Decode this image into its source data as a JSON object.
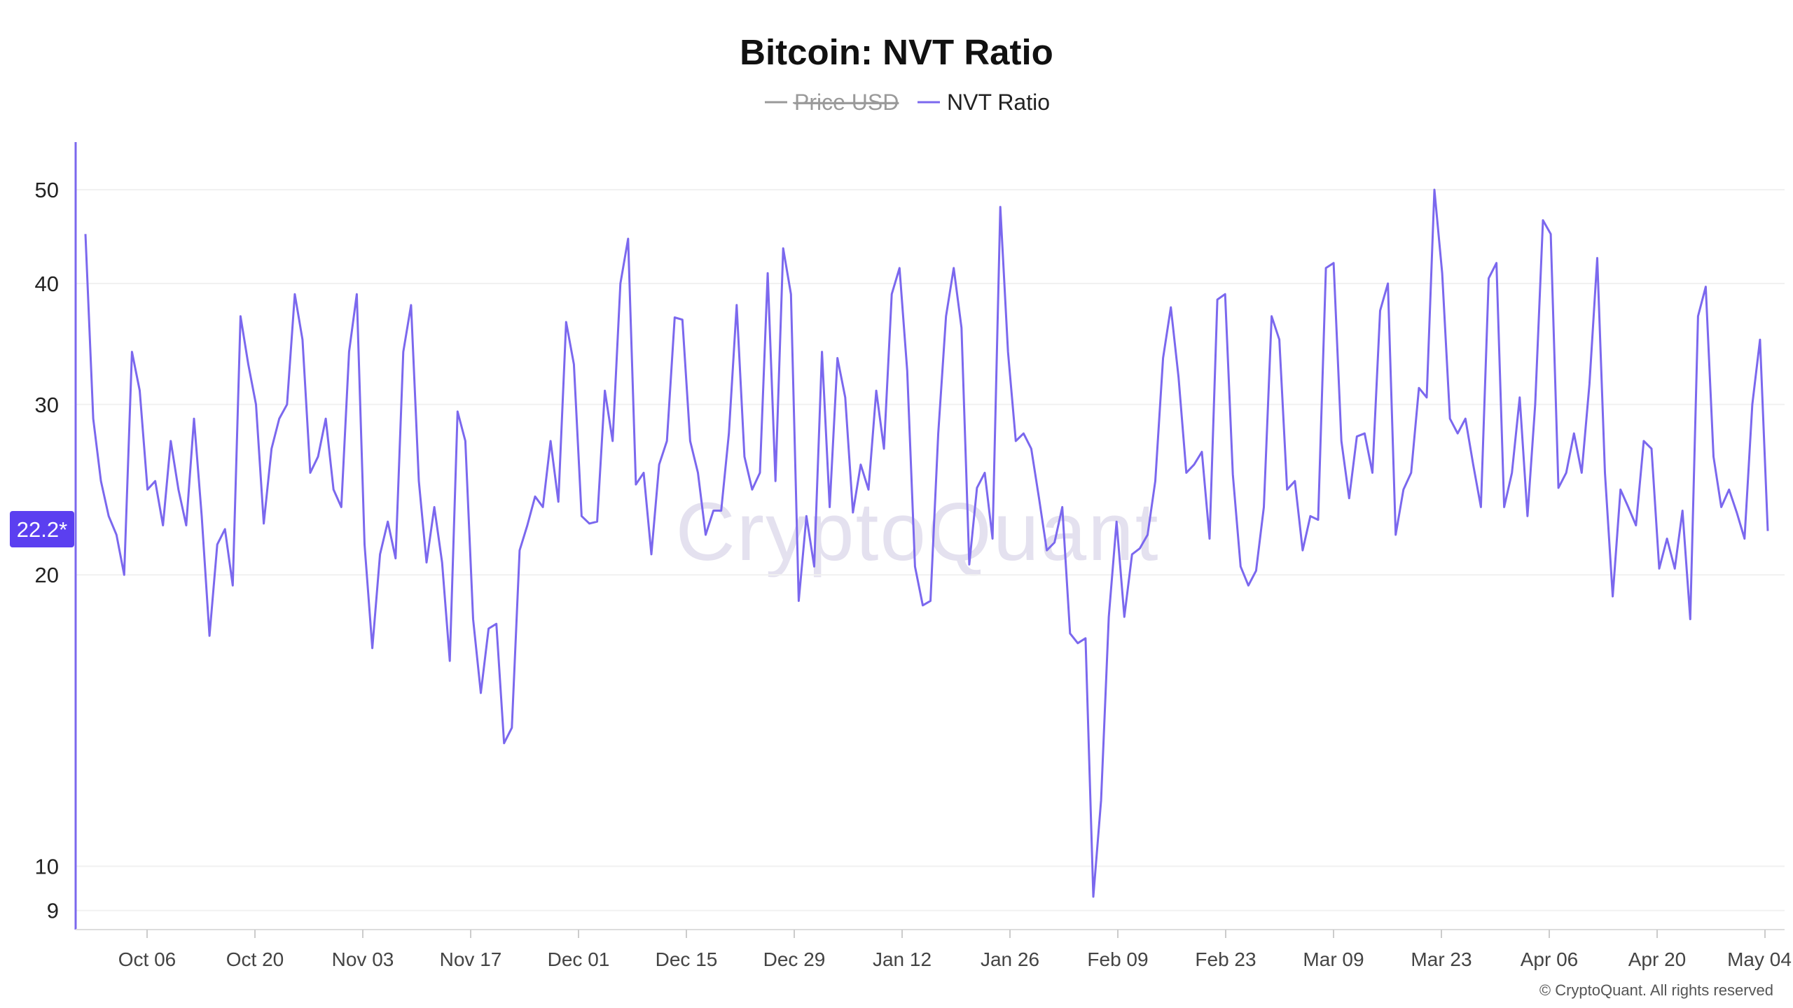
{
  "chart_data": {
    "type": "line",
    "title": "Bitcoin: NVT Ratio",
    "y_scale": "log",
    "ylim": [
      8.6,
      56
    ],
    "y_ticks": [
      "9",
      "10",
      "20",
      "30",
      "40",
      "50"
    ],
    "x_ticks": [
      "Oct 06",
      "Oct 20",
      "Nov 03",
      "Nov 17",
      "Dec 01",
      "Dec 15",
      "Dec 29",
      "Jan 12",
      "Jan 26",
      "Feb 09",
      "Feb 23",
      "Mar 09",
      "Mar 23",
      "Apr 06",
      "Apr 20",
      "May 04"
    ],
    "legend": [
      {
        "name": "Price USD",
        "color": "#888888",
        "hidden": true
      },
      {
        "name": "NVT Ratio",
        "color": "#7b68ee",
        "hidden": false
      }
    ],
    "current_value_label": "22.2*",
    "series": [
      {
        "name": "NVT Ratio",
        "color": "#7b68ee",
        "values": [
          45,
          29,
          25,
          23,
          22,
          20,
          34,
          31,
          24.5,
          25,
          22.5,
          27.5,
          24.5,
          22.5,
          29,
          23,
          17.3,
          21.5,
          22.3,
          19.5,
          37,
          33,
          30,
          22.6,
          27,
          29,
          30,
          39,
          35,
          25.5,
          26.5,
          29,
          24.5,
          23.5,
          34,
          39,
          21.5,
          16.8,
          21,
          22.7,
          20.8,
          34,
          38,
          25,
          20.6,
          23.5,
          20.6,
          16.3,
          29.5,
          27.5,
          18,
          15.1,
          17.6,
          17.8,
          13.4,
          13.9,
          21.2,
          22.5,
          24.1,
          23.5,
          27.5,
          23.8,
          36.5,
          33,
          23,
          22.6,
          22.7,
          31,
          27.5,
          40,
          44.5,
          24.8,
          25.5,
          21,
          26,
          27.5,
          36.9,
          36.7,
          27.5,
          25.5,
          22,
          23.3,
          23.3,
          28,
          38,
          26.5,
          24.5,
          25.5,
          41,
          25,
          43.5,
          39,
          18.8,
          23,
          20.4,
          34,
          23.5,
          33.5,
          30.5,
          23.2,
          26,
          24.5,
          31,
          27,
          39,
          41.5,
          32.5,
          20.4,
          18.6,
          18.8,
          28,
          37,
          41.5,
          36,
          20.5,
          24.6,
          25.5,
          21.8,
          48,
          34,
          27.5,
          28,
          27,
          24,
          21.2,
          21.6,
          23.5,
          17.4,
          17,
          17.2,
          9.3,
          11.7,
          18.1,
          22.7,
          18.1,
          21,
          21.3,
          22,
          25,
          33.5,
          37.8,
          32,
          25.5,
          26,
          26.8,
          21.8,
          38.5,
          39,
          25.4,
          20.4,
          19.5,
          20.2,
          23.5,
          37,
          35,
          24.5,
          25,
          21.2,
          23,
          22.8,
          41.5,
          42,
          27.5,
          24,
          27.8,
          28,
          25.5,
          37.5,
          40,
          22,
          24.5,
          25.5,
          31.2,
          30.5,
          50,
          41,
          29,
          28,
          29,
          26,
          23.5,
          40.5,
          42,
          23.5,
          25.5,
          30.5,
          23,
          30,
          46.5,
          45,
          24.6,
          25.5,
          28,
          25.5,
          31.5,
          42.5,
          25.5,
          19,
          24.5,
          23.5,
          22.5,
          27.5,
          27,
          20.3,
          21.8,
          20.3,
          23.3,
          18,
          37,
          39.7,
          26.5,
          23.5,
          24.5,
          23.2,
          21.8,
          30,
          35,
          22.2
        ]
      }
    ],
    "watermark": "CryptoQuant",
    "copyright": "© CryptoQuant. All rights reserved"
  }
}
